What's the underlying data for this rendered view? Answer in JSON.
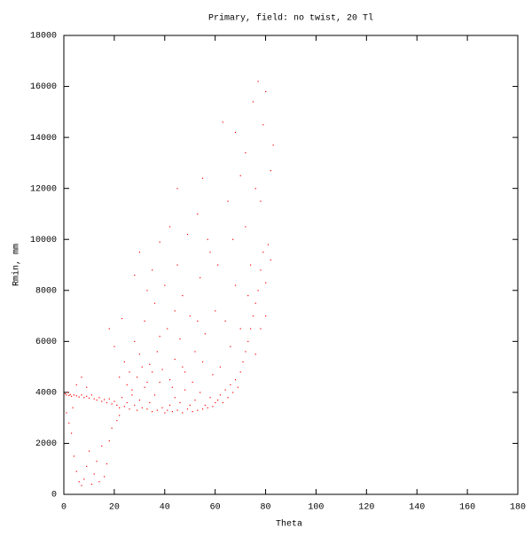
{
  "chart_data": {
    "type": "scatter",
    "title": "Primary, field: no twist, 20 Tl",
    "x_label": "Theta",
    "y_label": "Rmin, mm",
    "color": "#ff0000",
    "xlim": [
      0,
      180
    ],
    "xticks": [
      0,
      20,
      40,
      60,
      80,
      100,
      120,
      140,
      160,
      180
    ],
    "ylim": [
      0,
      18000
    ],
    "yticks": [
      0,
      2000,
      4000,
      6000,
      8000,
      10000,
      12000,
      14000,
      16000,
      18000
    ],
    "x": [
      0.5,
      1,
      1.5,
      2,
      2.5,
      3,
      4,
      5,
      6,
      7,
      8,
      9,
      10,
      11,
      12,
      13,
      14,
      15,
      16,
      17,
      18,
      19,
      20,
      1,
      2,
      3,
      4,
      5,
      6,
      7,
      8,
      9,
      10,
      11,
      12,
      13,
      14,
      15,
      16,
      17,
      18,
      19,
      21,
      22,
      3.5,
      5,
      7,
      9,
      21,
      22,
      23,
      24,
      25,
      26,
      27,
      28,
      29,
      30,
      31,
      32,
      33,
      34,
      35,
      36,
      37,
      38,
      39,
      40,
      22,
      24,
      26,
      28,
      30,
      32,
      34,
      36,
      38,
      40,
      25,
      27,
      29,
      31,
      33,
      35,
      37,
      39,
      30,
      35,
      42,
      45,
      20,
      18,
      23,
      28,
      33,
      38,
      41,
      42,
      43,
      44,
      45,
      46,
      47,
      48,
      49,
      50,
      51,
      52,
      53,
      54,
      55,
      56,
      57,
      58,
      59,
      60,
      42,
      44,
      46,
      48,
      50,
      52,
      54,
      56,
      58,
      60,
      43,
      47,
      51,
      55,
      59,
      45,
      49,
      53,
      55,
      57,
      47,
      53,
      41,
      44,
      61,
      62,
      63,
      64,
      65,
      66,
      67,
      68,
      69,
      70,
      71,
      72,
      73,
      74,
      75,
      76,
      77,
      78,
      79,
      80,
      81,
      82,
      83,
      62,
      64,
      66,
      68,
      70,
      72,
      74,
      76,
      78,
      80,
      77,
      63,
      68,
      72,
      75,
      79,
      65,
      70,
      61,
      67,
      73,
      76,
      78,
      80,
      82
    ],
    "values": [
      3950,
      3900,
      4000,
      3880,
      3920,
      3850,
      3900,
      3870,
      3820,
      3900,
      3800,
      3850,
      3780,
      3900,
      3750,
      3700,
      3800,
      3650,
      3720,
      3600,
      3750,
      3550,
      3650,
      3200,
      2800,
      2400,
      1500,
      900,
      500,
      350,
      600,
      1100,
      1700,
      400,
      800,
      1300,
      500,
      1900,
      700,
      1200,
      2100,
      2600,
      2900,
      3100,
      3400,
      4300,
      4600,
      4200,
      3500,
      3400,
      3800,
      3450,
      3600,
      3350,
      4100,
      3500,
      3300,
      3700,
      3400,
      4200,
      3350,
      3600,
      3250,
      3900,
      3300,
      4400,
      3400,
      3200,
      4600,
      5200,
      4800,
      6000,
      5500,
      6800,
      5100,
      7500,
      6200,
      8200,
      4300,
      3900,
      4600,
      5000,
      4400,
      4800,
      5600,
      4900,
      9500,
      8800,
      10500,
      12000,
      5800,
      6500,
      6900,
      8600,
      8000,
      9900,
      3300,
      3500,
      3250,
      3800,
      3300,
      3600,
      3200,
      4100,
      3350,
      3500,
      3250,
      3700,
      3300,
      4000,
      3350,
      3500,
      3400,
      3800,
      3450,
      3600,
      4500,
      5300,
      6100,
      4800,
      7000,
      5600,
      8500,
      6300,
      9500,
      7200,
      4200,
      5000,
      4400,
      5200,
      4700,
      9000,
      10200,
      11000,
      12400,
      10000,
      7800,
      6800,
      6500,
      7200,
      3700,
      3900,
      3600,
      4100,
      3800,
      4300,
      4000,
      4500,
      4200,
      4800,
      5200,
      5600,
      6000,
      6500,
      7000,
      7500,
      8000,
      8800,
      9500,
      8300,
      9800,
      12700,
      13700,
      5000,
      6800,
      5800,
      8200,
      6500,
      10500,
      9000,
      12000,
      11500,
      15800,
      16200,
      14600,
      14200,
      13400,
      15400,
      14500,
      11500,
      12500,
      9000,
      10000,
      7800,
      5500,
      6500,
      7000,
      9200
    ]
  }
}
